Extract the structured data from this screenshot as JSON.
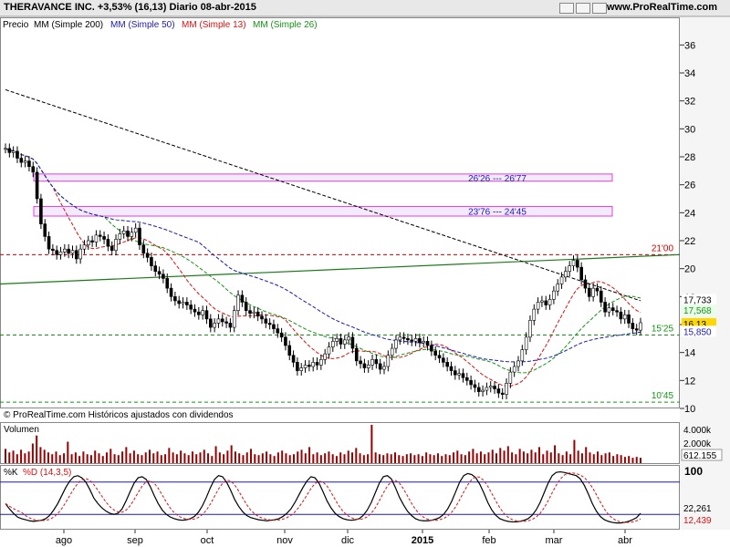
{
  "header": {
    "title": "THERAVANCE INC.   +3,53% (16,13)   Diario   08-abr-2015",
    "site": "www.ProRealTime.com"
  },
  "legend": {
    "price": "Precio",
    "ma200": "MM (Simple 200)",
    "ma50": "MM (Simple 50)",
    "ma13": "MM (Simple 13)",
    "ma26": "MM (Simple 26)"
  },
  "copyright": "© ProRealTime.com  Históricos ajustados con dividendos",
  "volume_label": "Volumen",
  "stoch_k_label": "%K",
  "stoch_d_label": "%D (14,3,5)",
  "colors": {
    "ma200": "#000000",
    "ma50": "#1a1ab4",
    "ma13": "#e01010",
    "ma26": "#149614",
    "up": "#000000",
    "down": "#000000",
    "volume": "#990000",
    "zone": "#e040e0"
  },
  "chart_data": [
    {
      "type": "candlestick",
      "title": "THERAVANCE INC.",
      "ylim": [
        10,
        37
      ],
      "y_ticks": [
        10,
        12,
        14,
        16,
        18,
        20,
        22,
        24,
        26,
        28,
        30,
        32,
        34,
        36
      ],
      "x_ticks": [
        "ago",
        "sep",
        "oct",
        "nov",
        "dic",
        "2015",
        "feb",
        "mar",
        "abr"
      ],
      "price_close": [
        28.6,
        28.3,
        28.4,
        27.9,
        27.6,
        27.7,
        27.3,
        26.9,
        25.0,
        23.2,
        22.3,
        21.4,
        21.3,
        21.0,
        21.2,
        21.4,
        21.1,
        21.3,
        20.7,
        21.4,
        21.7,
        22.0,
        21.9,
        22.4,
        22.3,
        22.1,
        21.6,
        21.3,
        22.1,
        22.5,
        22.7,
        22.3,
        22.6,
        22.9,
        21.7,
        21.1,
        20.8,
        20.2,
        19.8,
        19.6,
        19.3,
        18.6,
        18.0,
        17.7,
        17.5,
        17.6,
        17.4,
        17.1,
        16.9,
        16.7,
        17.0,
        16.4,
        15.8,
        16.1,
        16.4,
        16.2,
        16.1,
        15.8,
        17.0,
        18.1,
        17.6,
        17.0,
        16.8,
        16.9,
        16.6,
        16.4,
        16.1,
        16.0,
        15.7,
        15.4,
        15.1,
        14.5,
        13.8,
        13.3,
        12.7,
        12.9,
        13.1,
        13.0,
        13.3,
        13.1,
        13.5,
        13.9,
        14.4,
        14.8,
        15.0,
        14.6,
        14.9,
        15.1,
        14.3,
        13.4,
        13.2,
        12.9,
        13.1,
        13.5,
        13.2,
        12.8,
        13.0,
        13.8,
        14.3,
        14.9,
        15.1,
        15.0,
        14.9,
        14.8,
        15.0,
        14.7,
        14.8,
        14.5,
        14.1,
        13.8,
        13.6,
        13.3,
        13.0,
        12.7,
        12.4,
        12.5,
        12.2,
        12.0,
        11.7,
        11.5,
        11.2,
        11.3,
        11.5,
        11.6,
        11.4,
        11.1,
        11.0,
        11.8,
        12.6,
        13.0,
        13.4,
        14.2,
        15.1,
        16.3,
        17.1,
        17.6,
        17.7,
        17.4,
        17.8,
        18.4,
        18.9,
        19.4,
        19.8,
        20.2,
        20.6,
        20.1,
        19.2,
        18.6,
        18.0,
        18.6,
        18.4,
        17.6,
        16.9,
        17.2,
        17.0,
        16.9,
        16.4,
        16.7,
        16.1,
        15.7,
        15.6,
        16.13
      ],
      "moving_averages": {
        "MM (Simple 200)": "ma200",
        "MM (Simple 50)": "ma50",
        "MM (Simple 13)": "ma13",
        "MM (Simple 26)": "ma26"
      },
      "last_values": {
        "MM (Simple 200)": "17,733",
        "MM (Simple 26)": "17,568",
        "MM (Simple 50)": "15,850",
        "price": "16,13"
      },
      "zones": [
        {
          "label": "26'26 --- 26'77",
          "low": 26.26,
          "high": 26.77
        },
        {
          "label": "23'76 --- 24'45",
          "low": 23.76,
          "high": 24.45
        }
      ],
      "levels": [
        {
          "label": "21'00",
          "value": 21.0,
          "color": "#cc0000"
        },
        {
          "label": "15'25",
          "value": 15.25,
          "color": "#149614"
        },
        {
          "label": "10'45",
          "value": 10.45,
          "color": "#149614"
        }
      ],
      "trendline": {
        "x0": 0,
        "y0": 18.9,
        "x1": 160,
        "y1": 21.0
      }
    },
    {
      "type": "bar",
      "title": "Volumen",
      "y_ticks": [
        "4.000k",
        "2.000k"
      ],
      "last_value": "612.155",
      "values": [
        1.6,
        1.2,
        1.4,
        1.0,
        1.5,
        1.1,
        1.3,
        2.2,
        3.1,
        1.8,
        1.5,
        1.2,
        1.0,
        1.3,
        0.9,
        1.1,
        2.4,
        1.0,
        1.2,
        0.8,
        1.3,
        1.0,
        0.9,
        1.4,
        1.1,
        0.8,
        1.2,
        1.6,
        1.0,
        0.9,
        1.3,
        1.8,
        1.1,
        1.4,
        1.0,
        0.9,
        1.2,
        1.5,
        1.1,
        1.3,
        0.9,
        1.0,
        1.7,
        1.2,
        1.0,
        1.4,
        1.1,
        0.9,
        1.3,
        1.0,
        1.2,
        1.5,
        1.1,
        0.8,
        1.9,
        1.2,
        1.0,
        1.4,
        2.0,
        1.3,
        1.1,
        0.9,
        1.2,
        1.6,
        1.0,
        0.9,
        1.1,
        1.3,
        1.0,
        0.8,
        1.2,
        1.4,
        1.1,
        0.9,
        1.0,
        1.3,
        1.5,
        1.1,
        1.8,
        1.0,
        1.2,
        0.9,
        1.1,
        1.3,
        1.0,
        0.8,
        1.2,
        1.0,
        1.4,
        1.2,
        1.7,
        1.1,
        0.9,
        1.0,
        4.3,
        1.2,
        1.0,
        0.9,
        1.1,
        1.0,
        1.2,
        0.9,
        0.8,
        1.0,
        1.1,
        0.9,
        1.0,
        0.8,
        1.2,
        1.0,
        0.9,
        1.1,
        0.8,
        1.0,
        0.9,
        1.2,
        1.4,
        1.0,
        0.9,
        1.3,
        1.6,
        1.1,
        1.3,
        1.0,
        1.2,
        1.5,
        1.1,
        1.7,
        1.4,
        1.9,
        1.2,
        1.0,
        1.6,
        1.3,
        1.1,
        1.5,
        1.2,
        1.8,
        1.0,
        1.4,
        1.2,
        2.0,
        1.1,
        0.9,
        1.3,
        1.0,
        2.6,
        1.4,
        1.1,
        1.8,
        1.2,
        1.0,
        1.3,
        0.9,
        1.1,
        1.2,
        0.8,
        1.0,
        0.9,
        0.7,
        0.8,
        0.6,
        0.7,
        0.6
      ]
    },
    {
      "type": "line",
      "title": "%K %D (14,3,5)",
      "y_ticks": [
        100
      ],
      "last_values": {
        "%K": "22,261",
        "%D": "12,439"
      },
      "k_values": [
        40,
        30,
        22,
        15,
        12,
        10,
        8,
        7,
        8,
        9,
        12,
        18,
        28,
        40,
        55,
        70,
        82,
        90,
        92,
        88,
        80,
        66,
        50,
        40,
        32,
        26,
        22,
        20,
        22,
        30,
        45,
        62,
        78,
        88,
        90,
        85,
        72,
        55,
        40,
        28,
        20,
        15,
        12,
        10,
        9,
        10,
        12,
        16,
        24,
        36,
        52,
        70,
        85,
        92,
        90,
        80,
        65,
        48,
        35,
        25,
        18,
        14,
        12,
        10,
        9,
        8,
        9,
        10,
        12,
        16,
        22,
        30,
        42,
        56,
        70,
        82,
        90,
        88,
        78,
        62,
        45,
        32,
        22,
        16,
        12,
        10,
        9,
        10,
        12,
        18,
        28,
        42,
        60,
        78,
        90,
        92,
        86,
        70,
        52,
        38,
        26,
        18,
        12,
        9,
        8,
        8,
        9,
        11,
        14,
        20,
        30,
        44,
        62,
        80,
        92,
        96,
        94,
        88,
        76,
        60,
        42,
        28,
        18,
        12,
        9,
        7,
        6,
        6,
        7,
        9,
        12,
        18,
        28,
        42,
        60,
        78,
        92,
        98,
        99,
        98,
        96,
        94,
        92,
        86,
        74,
        58,
        40,
        26,
        16,
        10,
        7,
        5,
        4,
        4,
        5,
        7,
        10,
        14,
        22
      ]
    }
  ]
}
